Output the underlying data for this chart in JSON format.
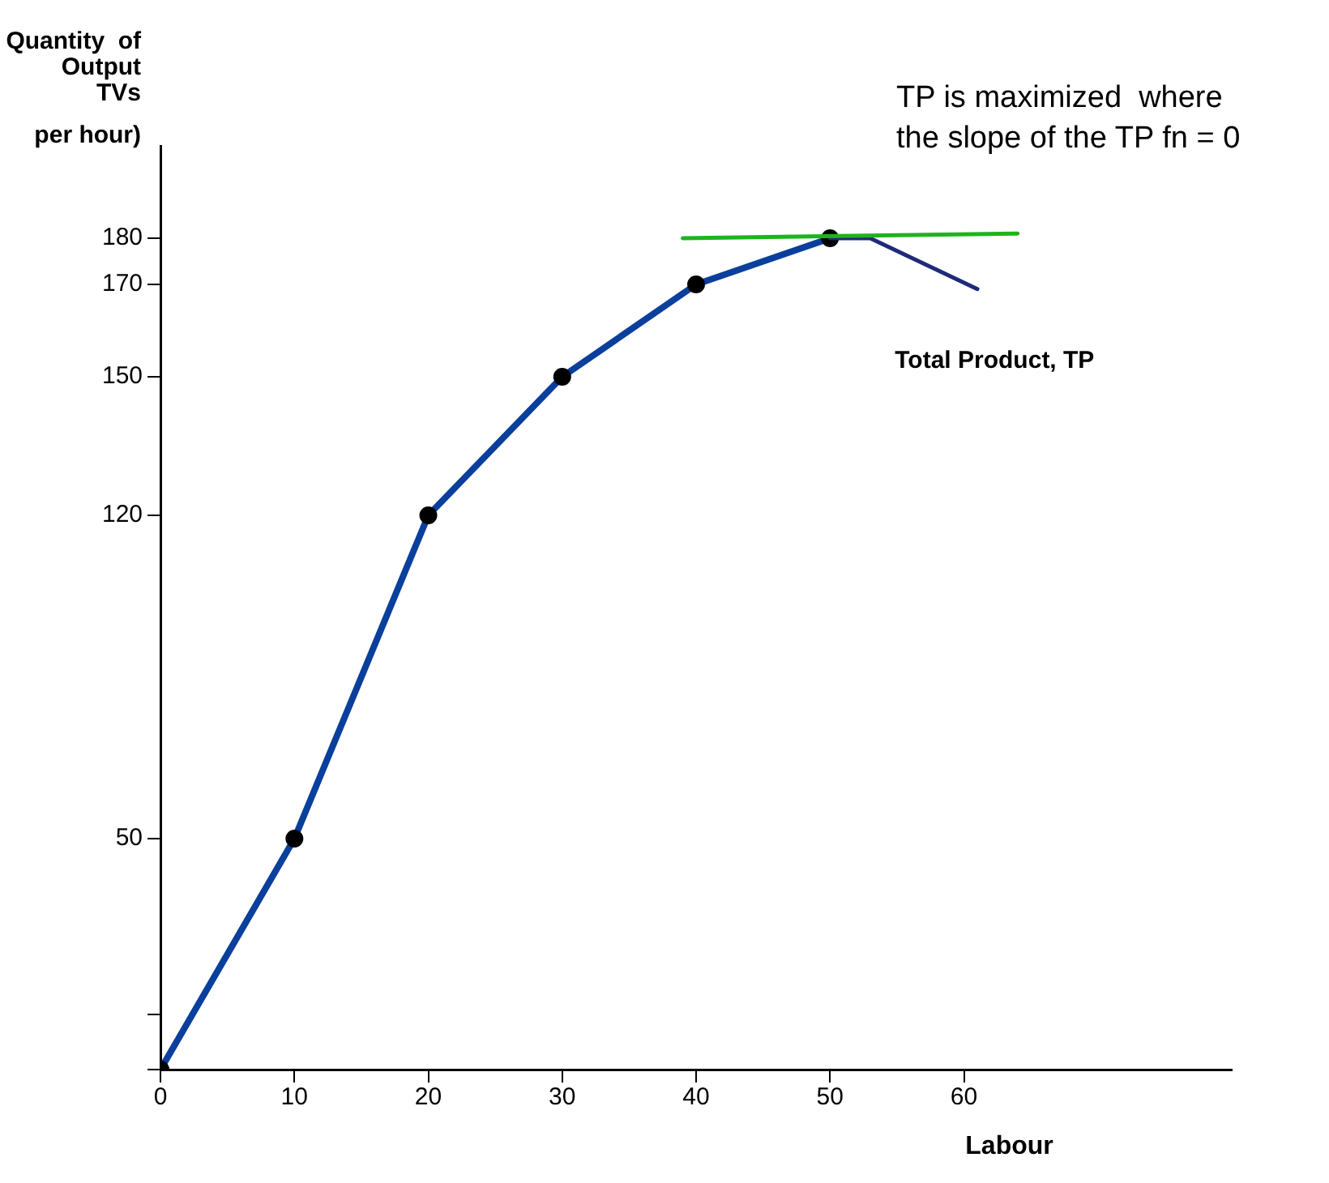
{
  "chart_data": {
    "type": "line",
    "ylabel": "Quantity  of\nOutput\nTVs\nper hour)",
    "xlabel": "Labour",
    "annotations": [
      "TP is maximized  where\nthe slope of the TP fn = 0"
    ],
    "xlim": [
      0,
      80
    ],
    "xticks": [
      0,
      10,
      20,
      30,
      40,
      50,
      60
    ],
    "ylim": [
      0,
      200
    ],
    "yticks": [
      {
        "value": 0,
        "label": null
      },
      {
        "value": 12,
        "label": null
      },
      50,
      120,
      150,
      170,
      180
    ],
    "grid": false,
    "legend": false,
    "series": [
      {
        "name": "Total Product, TP",
        "color": "#0a3f9c",
        "marker": "circle",
        "x": [
          0,
          10,
          20,
          30,
          40,
          50
        ],
        "values": [
          0,
          50,
          120,
          150,
          170,
          180
        ]
      },
      {
        "color": "#1f2a78",
        "marker": "none",
        "x": [
          50,
          53,
          61
        ],
        "values": [
          180,
          180,
          169
        ]
      },
      {
        "color": "#1fb31f",
        "marker": "none",
        "x": [
          39,
          64
        ],
        "values": [
          180,
          181
        ]
      }
    ]
  }
}
